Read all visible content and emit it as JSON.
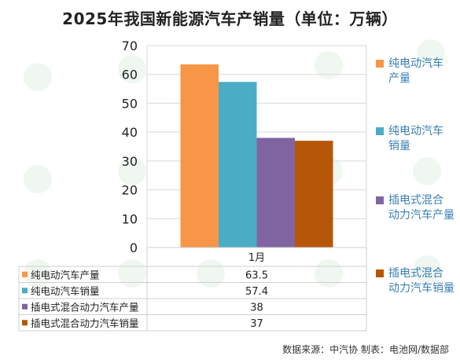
{
  "chart_data": {
    "type": "bar",
    "title": "2025年我国新能源汽车产销量（单位：万辆）",
    "categories": [
      "1月"
    ],
    "series": [
      {
        "name": "纯电动汽车产量",
        "values": [
          63.5
        ],
        "color": "#F79646"
      },
      {
        "name": "纯电动汽车销量",
        "values": [
          57.4
        ],
        "color": "#4BACC6"
      },
      {
        "name": "插电式混合动力汽车产量",
        "values": [
          38
        ],
        "color": "#8064A2"
      },
      {
        "name": "插电式混合动力汽车销量",
        "values": [
          37
        ],
        "color": "#B65708"
      }
    ],
    "ylim": [
      0,
      70
    ],
    "yticks": [
      0,
      10,
      20,
      30,
      40,
      50,
      60,
      70
    ],
    "grid": true,
    "legend": "right",
    "data_table": true
  },
  "legend_labels": [
    "纯电动汽车产量",
    "纯电动汽车销量",
    "插电式混合动力汽车产量",
    "插电式混合动力汽车销量"
  ],
  "legend_lines": [
    [
      "纯电动汽车",
      "产量"
    ],
    [
      "纯电动汽车",
      "销量"
    ],
    [
      "插电式混合",
      "动力汽车产量"
    ],
    [
      "插电式混合",
      "动力汽车销量"
    ]
  ],
  "table_values": [
    "63.5",
    "57.4",
    "38",
    "37"
  ],
  "source_text": "数据来源：中汽协  制表：电池网/数据部",
  "watermark_text": "电池网"
}
